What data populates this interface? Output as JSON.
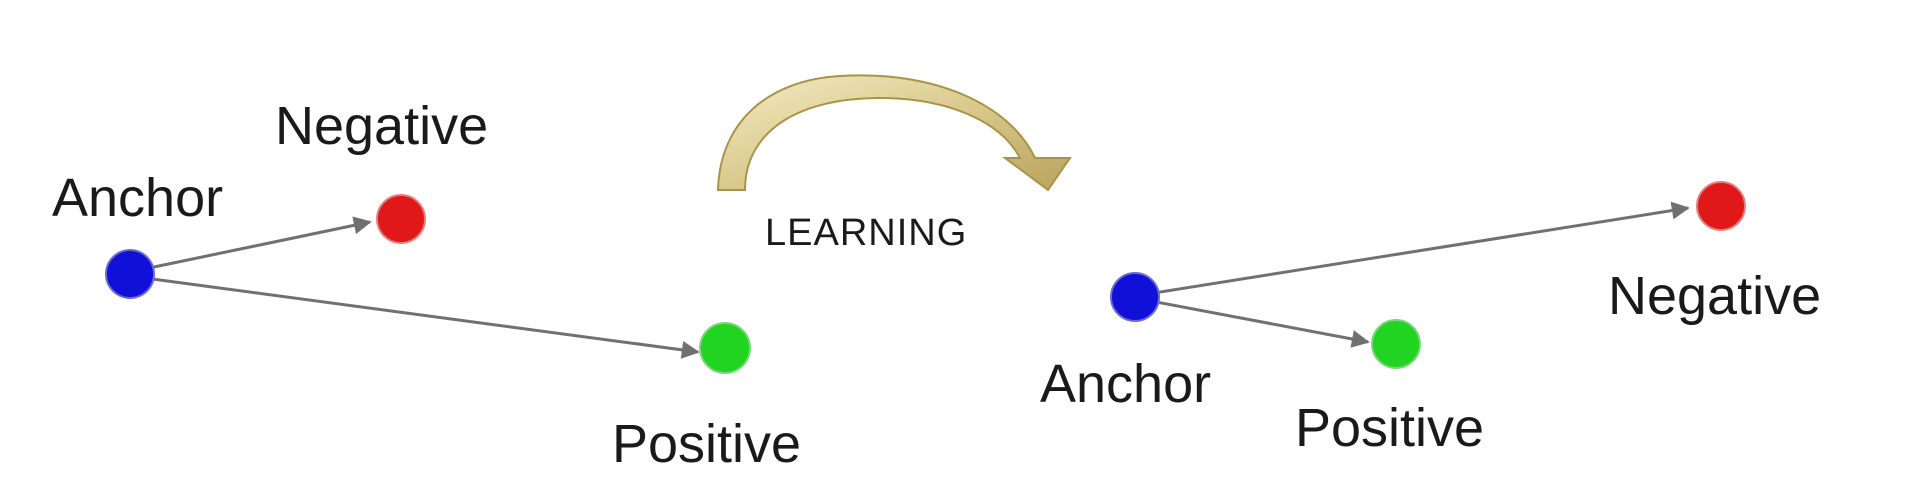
{
  "before": {
    "anchor_label": "Anchor",
    "negative_label": "Negative",
    "positive_label": "Positive"
  },
  "transition": {
    "label": "LEARNING"
  },
  "after": {
    "anchor_label": "Anchor",
    "negative_label": "Negative",
    "positive_label": "Positive"
  },
  "colors": {
    "anchor": "#1010d8",
    "negative": "#e01818",
    "positive": "#22d422",
    "arrow": "#707070",
    "curved_arrow": "#d8c88a"
  }
}
